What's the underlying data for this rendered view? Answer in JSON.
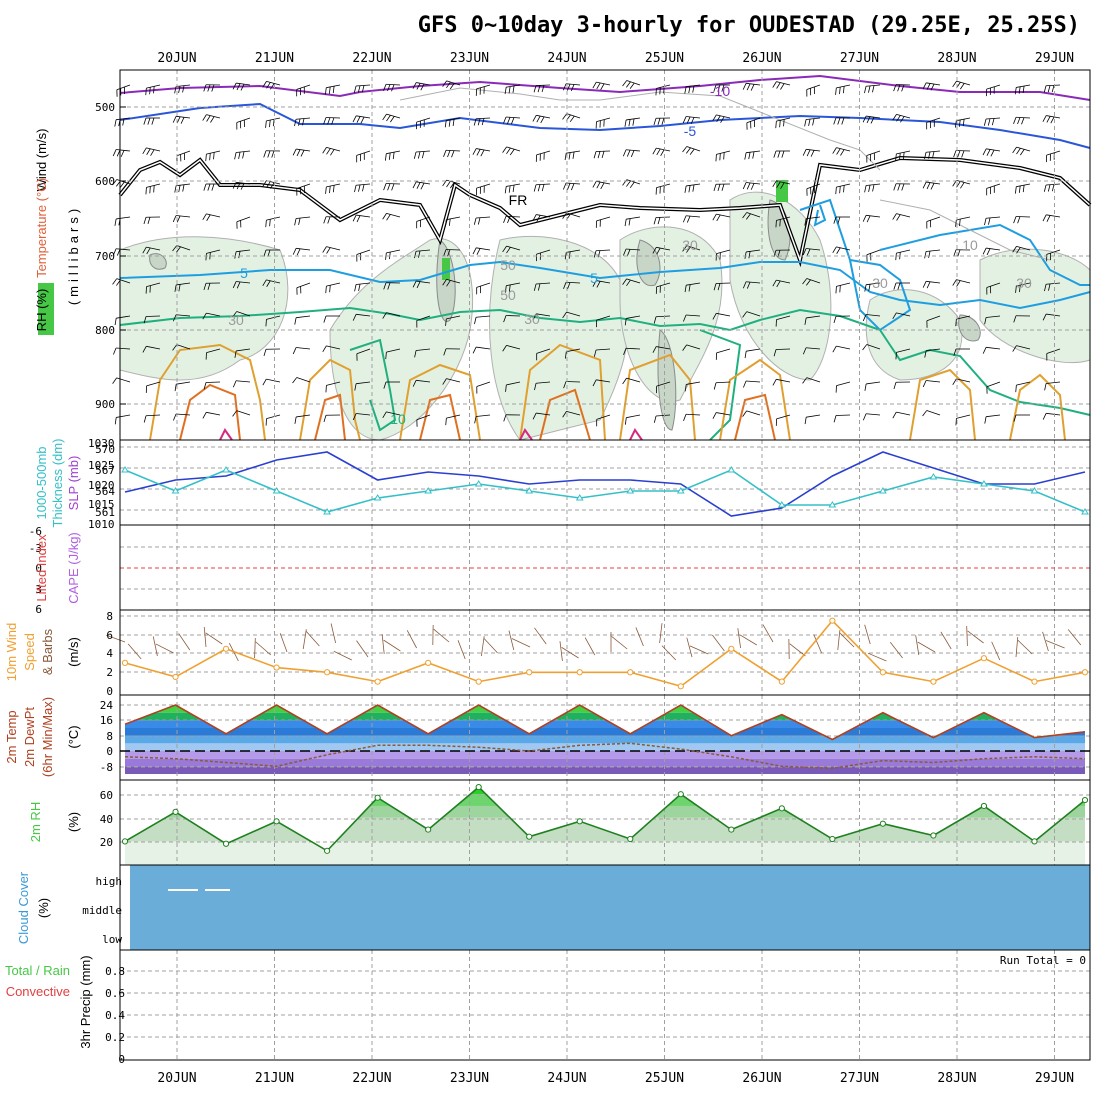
{
  "title": "GFS 0~10day 3-hourly for OUDESTAD (29.25E, 25.25S)",
  "dates": [
    "20JUN",
    "21JUN",
    "22JUN",
    "23JUN",
    "24JUN",
    "25JUN",
    "26JUN",
    "27JUN",
    "28JUN",
    "29JUN"
  ],
  "panels": {
    "upper": {
      "labels": [
        "Wind (m/s)",
        "Temperature (°C)",
        "RH (%)",
        "(millibars)"
      ],
      "y_ticks": [
        "500",
        "600",
        "700",
        "800",
        "900"
      ],
      "contour_labels": [
        "-10",
        "-5",
        "5",
        "5",
        "10",
        "FR",
        "30",
        "30",
        "30",
        "30",
        "50",
        "50",
        "30",
        "10"
      ]
    },
    "slp": {
      "labels": [
        "1000-500mb",
        "Thickness (dm)",
        "SLP (mb)"
      ],
      "left_ticks": [
        "570",
        "567",
        "564",
        "561"
      ],
      "right_ticks": [
        "1030",
        "1025",
        "1020",
        "1015",
        "1010"
      ]
    },
    "cape": {
      "labels": [
        "Lifted Index",
        "CAPE (J/kg)"
      ],
      "left_ticks": [
        "-6",
        "-3",
        "0",
        "3",
        "6"
      ]
    },
    "wind10": {
      "labels": [
        "10m Wind",
        "Speed",
        "& Barbs",
        "(m/s)"
      ],
      "ticks": [
        "8",
        "6",
        "4",
        "2",
        "0"
      ]
    },
    "temp": {
      "labels": [
        "2m Temp",
        "2m DewPt",
        "(6hr Min/Max)",
        "(°C)"
      ],
      "ticks": [
        "24",
        "16",
        "8",
        "0",
        "-8"
      ]
    },
    "rh": {
      "labels": [
        "2m RH",
        "(%)"
      ],
      "ticks": [
        "60",
        "40",
        "20"
      ]
    },
    "cloud": {
      "labels": [
        "Cloud Cover",
        "(%)"
      ],
      "levels": [
        "high",
        "middle",
        "low"
      ]
    },
    "precip": {
      "labels": [
        "Total / Rain",
        "Convective",
        "3hr Precip (mm)"
      ],
      "ticks": [
        "0.8",
        "0.6",
        "0.4",
        "0.2",
        "0"
      ],
      "run_total": "Run Total = 0"
    }
  },
  "colors": {
    "frame": "#000000",
    "grid": "#9a9a9a",
    "slp": "#2a3fd0",
    "thickness": "#35c0c8",
    "wind_speed": "#f0a030",
    "barbs": "#8a5a3a",
    "rh_fill": "#46c846",
    "cloud": "#6aadd8",
    "temp_red": "#b04020"
  },
  "chart_data": [
    {
      "type": "line",
      "title": "SLP & 1000-500mb Thickness",
      "x": [
        "20JUN",
        "20JUN",
        "21JUN",
        "21JUN",
        "22JUN",
        "22JUN",
        "23JUN",
        "23JUN",
        "24JUN",
        "24JUN",
        "25JUN",
        "25JUN",
        "26JUN",
        "26JUN",
        "27JUN",
        "27JUN",
        "28JUN",
        "28JUN",
        "29JUN",
        "29JUN"
      ],
      "series": [
        {
          "name": "SLP (mb)",
          "values": [
            1018,
            1021,
            1022,
            1026,
            1028,
            1021,
            1023,
            1022,
            1020,
            1021,
            1021,
            1020,
            1012,
            1014,
            1022,
            1028,
            1024,
            1020,
            1020,
            1023
          ]
        },
        {
          "name": "1000-500mb Thickness (dm)",
          "values": [
            567,
            564,
            567,
            564,
            561,
            563,
            564,
            565,
            564,
            563,
            564,
            564,
            567,
            562,
            562,
            564,
            566,
            565,
            564,
            561
          ]
        }
      ],
      "ylim": [
        1010,
        1030
      ]
    },
    {
      "type": "line",
      "title": "10m Wind Speed",
      "x": [
        "20JUN",
        "20JUN",
        "21JUN",
        "21JUN",
        "22JUN",
        "22JUN",
        "23JUN",
        "23JUN",
        "24JUN",
        "24JUN",
        "25JUN",
        "25JUN",
        "26JUN",
        "26JUN",
        "27JUN",
        "27JUN",
        "28JUN",
        "28JUN",
        "29JUN",
        "29JUN"
      ],
      "series": [
        {
          "name": "10m Wind Speed (m/s)",
          "values": [
            3,
            1.5,
            4.5,
            2.5,
            2,
            1,
            3,
            1,
            2,
            2,
            2,
            0.5,
            4.5,
            1,
            7.5,
            2,
            1,
            3.5,
            1,
            2
          ]
        }
      ],
      "ylim": [
        0,
        8
      ]
    },
    {
      "type": "area",
      "title": "2m Temp / DewPt",
      "x": [
        "20JUN",
        "20JUN",
        "21JUN",
        "21JUN",
        "22JUN",
        "22JUN",
        "23JUN",
        "23JUN",
        "24JUN",
        "24JUN",
        "25JUN",
        "25JUN",
        "26JUN",
        "26JUN",
        "27JUN",
        "27JUN",
        "28JUN",
        "28JUN",
        "29JUN",
        "29JUN"
      ],
      "series": [
        {
          "name": "2m Temp (°C)",
          "values": [
            14,
            24,
            9,
            24,
            9,
            24,
            9,
            24,
            9,
            24,
            9,
            24,
            8,
            19,
            6,
            20,
            7,
            20,
            7,
            10
          ]
        },
        {
          "name": "2m DewPt (°C)",
          "values": [
            -3,
            -4,
            -6,
            -8,
            -2,
            3,
            3,
            2,
            0,
            3,
            4,
            1,
            -3,
            -8,
            -9,
            -5,
            -6,
            -4,
            -3,
            -4
          ]
        }
      ],
      "ylim": [
        -12,
        26
      ]
    },
    {
      "type": "area",
      "title": "2m RH",
      "x": [
        "20JUN",
        "20JUN",
        "21JUN",
        "21JUN",
        "22JUN",
        "22JUN",
        "23JUN",
        "23JUN",
        "24JUN",
        "24JUN",
        "25JUN",
        "25JUN",
        "26JUN",
        "26JUN",
        "27JUN",
        "27JUN",
        "28JUN",
        "28JUN",
        "29JUN",
        "29JUN"
      ],
      "series": [
        {
          "name": "2m RH (%)",
          "values": [
            20,
            45,
            18,
            37,
            12,
            57,
            30,
            66,
            24,
            37,
            22,
            60,
            30,
            48,
            22,
            35,
            25,
            50,
            20,
            55
          ]
        }
      ],
      "ylim": [
        0,
        70
      ]
    },
    {
      "type": "bar",
      "title": "3hr Precip",
      "categories": [
        "20JUN",
        "21JUN",
        "22JUN",
        "23JUN",
        "24JUN",
        "25JUN",
        "26JUN",
        "27JUN",
        "28JUN",
        "29JUN"
      ],
      "values": [
        0,
        0,
        0,
        0,
        0,
        0,
        0,
        0,
        0,
        0
      ],
      "ylim": [
        0,
        0.9
      ]
    }
  ]
}
